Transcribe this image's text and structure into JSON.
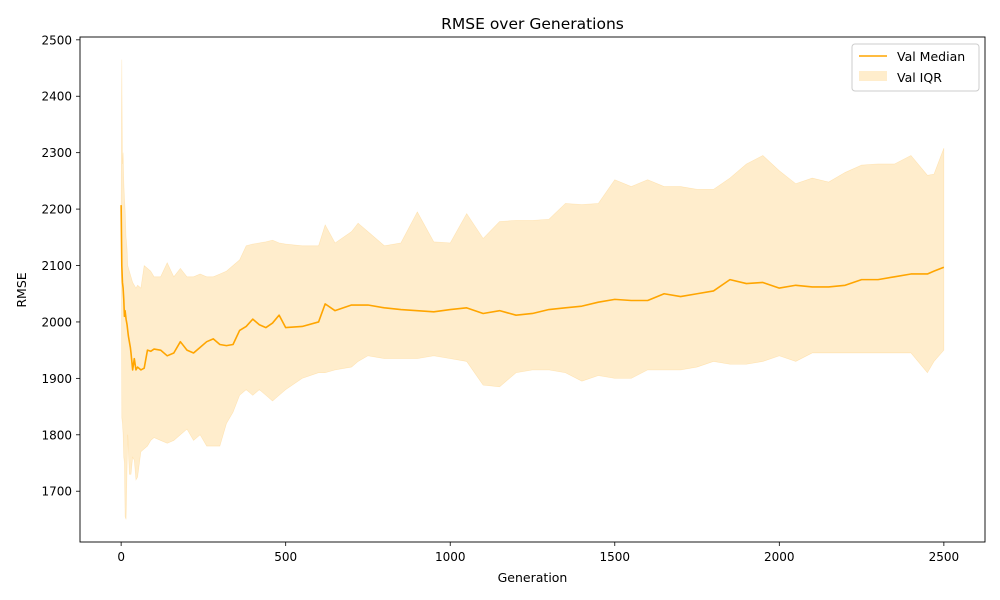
{
  "chart_data": {
    "type": "line",
    "title": "RMSE over Generations",
    "xlabel": "Generation",
    "ylabel": "RMSE",
    "xlim": [
      -125,
      2625
    ],
    "ylim": [
      1610,
      2505
    ],
    "xticks": [
      0,
      500,
      1000,
      1500,
      2000,
      2500
    ],
    "yticks": [
      1700,
      1800,
      1900,
      2000,
      2100,
      2200,
      2300,
      2400,
      2500
    ],
    "grid": false,
    "legend_position": "top-right",
    "colors": {
      "median": "#ffa500",
      "band": "#ffa500"
    },
    "series": [
      {
        "name": "Val Median",
        "kind": "line",
        "x": [
          0,
          2,
          4,
          6,
          8,
          10,
          12,
          15,
          18,
          20,
          22,
          25,
          28,
          30,
          35,
          40,
          45,
          50,
          60,
          70,
          80,
          90,
          100,
          120,
          140,
          160,
          180,
          200,
          220,
          240,
          260,
          280,
          300,
          320,
          340,
          360,
          380,
          400,
          420,
          440,
          460,
          480,
          500,
          550,
          600,
          620,
          650,
          700,
          750,
          800,
          850,
          900,
          950,
          1000,
          1050,
          1100,
          1150,
          1200,
          1250,
          1300,
          1350,
          1400,
          1450,
          1500,
          1550,
          1600,
          1650,
          1700,
          1750,
          1800,
          1850,
          1900,
          1950,
          2000,
          2050,
          2100,
          2150,
          2200,
          2250,
          2300,
          2350,
          2400,
          2450,
          2470,
          2500
        ],
        "values": [
          2207,
          2100,
          2070,
          2060,
          2040,
          2010,
          2020,
          2005,
          1995,
          1985,
          1975,
          1965,
          1955,
          1945,
          1915,
          1935,
          1915,
          1920,
          1915,
          1918,
          1950,
          1948,
          1952,
          1950,
          1940,
          1945,
          1965,
          1950,
          1945,
          1955,
          1965,
          1970,
          1960,
          1958,
          1960,
          1985,
          1992,
          2005,
          1995,
          1990,
          1998,
          2012,
          1990,
          1992,
          2000,
          2032,
          2020,
          2030,
          2030,
          2025,
          2022,
          2020,
          2018,
          2022,
          2025,
          2015,
          2020,
          2012,
          2015,
          2022,
          2025,
          2028,
          2035,
          2040,
          2038,
          2038,
          2050,
          2045,
          2050,
          2055,
          2075,
          2068,
          2070,
          2060,
          2065,
          2062,
          2062,
          2065,
          2075,
          2075,
          2080,
          2085,
          2085,
          2090,
          2097
        ]
      },
      {
        "name": "Val IQR",
        "kind": "band",
        "x": [
          0,
          2,
          4,
          6,
          8,
          10,
          12,
          15,
          18,
          20,
          25,
          30,
          35,
          40,
          45,
          50,
          60,
          70,
          80,
          90,
          100,
          120,
          140,
          160,
          180,
          200,
          220,
          240,
          260,
          280,
          300,
          320,
          340,
          360,
          380,
          400,
          420,
          440,
          460,
          480,
          500,
          550,
          600,
          620,
          650,
          700,
          720,
          750,
          800,
          850,
          900,
          950,
          1000,
          1050,
          1100,
          1150,
          1200,
          1250,
          1300,
          1350,
          1400,
          1450,
          1500,
          1550,
          1600,
          1650,
          1700,
          1750,
          1800,
          1850,
          1900,
          1950,
          2000,
          2050,
          2100,
          2150,
          2200,
          2250,
          2300,
          2350,
          2400,
          2450,
          2470,
          2500
        ],
        "low": [
          2207,
          1830,
          1820,
          1800,
          1760,
          1750,
          1655,
          1650,
          1740,
          1800,
          1730,
          1730,
          1760,
          1755,
          1720,
          1725,
          1770,
          1775,
          1780,
          1790,
          1795,
          1790,
          1785,
          1790,
          1800,
          1810,
          1790,
          1800,
          1780,
          1780,
          1780,
          1820,
          1840,
          1870,
          1880,
          1870,
          1880,
          1870,
          1860,
          1870,
          1880,
          1900,
          1910,
          1910,
          1915,
          1920,
          1930,
          1940,
          1935,
          1935,
          1935,
          1940,
          1935,
          1930,
          1888,
          1885,
          1910,
          1915,
          1915,
          1910,
          1895,
          1905,
          1900,
          1900,
          1915,
          1915,
          1915,
          1920,
          1930,
          1925,
          1925,
          1930,
          1940,
          1930,
          1945,
          1945,
          1945,
          1945,
          1945,
          1945,
          1945,
          1910,
          1930,
          1950
        ],
        "high": [
          2207,
          2465,
          2280,
          2300,
          2250,
          2220,
          2200,
          2150,
          2130,
          2100,
          2090,
          2080,
          2070,
          2065,
          2060,
          2065,
          2060,
          2100,
          2095,
          2090,
          2080,
          2080,
          2105,
          2080,
          2095,
          2080,
          2080,
          2085,
          2080,
          2080,
          2085,
          2090,
          2100,
          2110,
          2135,
          2138,
          2140,
          2142,
          2145,
          2140,
          2138,
          2135,
          2135,
          2172,
          2140,
          2160,
          2175,
          2160,
          2135,
          2140,
          2195,
          2142,
          2140,
          2192,
          2148,
          2178,
          2180,
          2180,
          2182,
          2210,
          2208,
          2210,
          2252,
          2240,
          2252,
          2240,
          2240,
          2235,
          2235,
          2255,
          2280,
          2295,
          2268,
          2245,
          2255,
          2248,
          2265,
          2278,
          2280,
          2280,
          2295,
          2260,
          2262,
          2308
        ]
      }
    ]
  }
}
